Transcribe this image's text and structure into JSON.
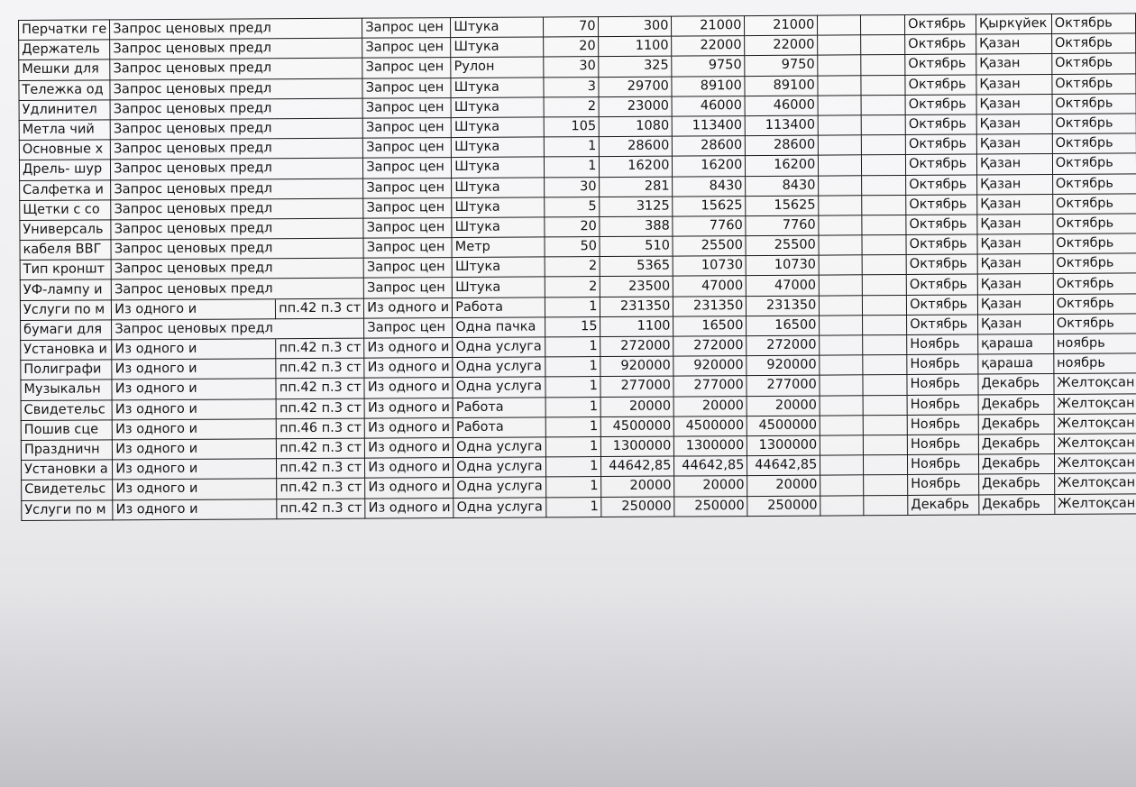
{
  "table": {
    "rows": [
      [
        "Перчатки ге",
        "Запрос ценовых предл",
        "",
        "Запрос цен",
        "Штука",
        "70",
        "300",
        "21000",
        "21000",
        "",
        "",
        "Октябрь",
        "Қыркүйек",
        "Октябрь"
      ],
      [
        "Держатель",
        "Запрос ценовых предл",
        "",
        "Запрос цен",
        "Штука",
        "20",
        "1100",
        "22000",
        "22000",
        "",
        "",
        "Октябрь",
        "Қазан",
        "Октябрь"
      ],
      [
        "Мешки для",
        "Запрос ценовых предл",
        "",
        "Запрос цен",
        "Рулон",
        "30",
        "325",
        "9750",
        "9750",
        "",
        "",
        "Октябрь",
        "Қазан",
        "Октябрь"
      ],
      [
        "Тележка од",
        "Запрос ценовых предл",
        "",
        "Запрос цен",
        "Штука",
        "3",
        "29700",
        "89100",
        "89100",
        "",
        "",
        "Октябрь",
        "Қазан",
        "Октябрь"
      ],
      [
        "Удлинител",
        "Запрос ценовых предл",
        "",
        "Запрос цен",
        "Штука",
        "2",
        "23000",
        "46000",
        "46000",
        "",
        "",
        "Октябрь",
        "Қазан",
        "Октябрь"
      ],
      [
        "Метла чий",
        "Запрос ценовых предл",
        "",
        "Запрос цен",
        "Штука",
        "105",
        "1080",
        "113400",
        "113400",
        "",
        "",
        "Октябрь",
        "Қазан",
        "Октябрь"
      ],
      [
        "Основные х",
        "Запрос ценовых предл",
        "",
        "Запрос цен",
        "Штука",
        "1",
        "28600",
        "28600",
        "28600",
        "",
        "",
        "Октябрь",
        "Қазан",
        "Октябрь"
      ],
      [
        "Дрель- шур",
        "Запрос ценовых предл",
        "",
        "Запрос цен",
        "Штука",
        "1",
        "16200",
        "16200",
        "16200",
        "",
        "",
        "Октябрь",
        "Қазан",
        "Октябрь"
      ],
      [
        "Салфетка и",
        "Запрос ценовых предл",
        "",
        "Запрос цен",
        "Штука",
        "30",
        "281",
        "8430",
        "8430",
        "",
        "",
        "Октябрь",
        "Қазан",
        "Октябрь"
      ],
      [
        "Щетки с со",
        "Запрос ценовых предл",
        "",
        "Запрос цен",
        "Штука",
        "5",
        "3125",
        "15625",
        "15625",
        "",
        "",
        "Октябрь",
        "Қазан",
        "Октябрь"
      ],
      [
        "Универсаль",
        "Запрос ценовых предл",
        "",
        "Запрос цен",
        "Штука",
        "20",
        "388",
        "7760",
        "7760",
        "",
        "",
        "Октябрь",
        "Қазан",
        "Октябрь"
      ],
      [
        "кабеля ВВГ",
        "Запрос ценовых предл",
        "",
        "Запрос цен",
        "Метр",
        "50",
        "510",
        "25500",
        "25500",
        "",
        "",
        "Октябрь",
        "Қазан",
        "Октябрь"
      ],
      [
        "Тип кроншт",
        "Запрос ценовых предл",
        "",
        "Запрос цен",
        "Штука",
        "2",
        "5365",
        "10730",
        "10730",
        "",
        "",
        "Октябрь",
        "Қазан",
        "Октябрь"
      ],
      [
        "УФ-лампу и",
        "Запрос ценовых предл",
        "",
        "Запрос цен",
        "Штука",
        "2",
        "23500",
        "47000",
        "47000",
        "",
        "",
        "Октябрь",
        "Қазан",
        "Октябрь"
      ],
      [
        "Услуги по м",
        "Из одного и",
        "пп.42 п.3 ст",
        "Из одного и",
        "Работа",
        "1",
        "231350",
        "231350",
        "231350",
        "",
        "",
        "Октябрь",
        "Қазан",
        "Октябрь"
      ],
      [
        "бумаги для",
        "Запрос ценовых предл",
        "",
        "Запрос цен",
        "Одна пачка",
        "15",
        "1100",
        "16500",
        "16500",
        "",
        "",
        "Октябрь",
        "Қазан",
        "Октябрь"
      ],
      [
        "Установка и",
        "Из одного и",
        "пп.42 п.3 ст",
        "Из одного и",
        "Одна услуга",
        "1",
        "272000",
        "272000",
        "272000",
        "",
        "",
        "Ноябрь",
        "қараша",
        "ноябрь"
      ],
      [
        "Полиграфи",
        "Из одного и",
        "пп.42 п.3 ст",
        "Из одного и",
        "Одна услуга",
        "1",
        "920000",
        "920000",
        "920000",
        "",
        "",
        "Ноябрь",
        "қараша",
        "ноябрь"
      ],
      [
        "Музыкальн",
        "Из одного и",
        "пп.42 п.3 ст",
        "Из одного и",
        "Одна услуга",
        "1",
        "277000",
        "277000",
        "277000",
        "",
        "",
        "Ноябрь",
        "Декабрь",
        "Желтоқсан"
      ],
      [
        "Свидетельс",
        "Из одного и",
        "пп.42 п.3 ст",
        "Из одного и",
        "Работа",
        "1",
        "20000",
        "20000",
        "20000",
        "",
        "",
        "Ноябрь",
        "Декабрь",
        "Желтоқсан"
      ],
      [
        "Пошив сце",
        "Из одного и",
        "пп.46 п.3 ст",
        "Из одного и",
        "Работа",
        "1",
        "4500000",
        "4500000",
        "4500000",
        "",
        "",
        "Ноябрь",
        "Декабрь",
        "Желтоқсан"
      ],
      [
        "Праздничн",
        "Из одного и",
        "пп.42 п.3 ст",
        "Из одного и",
        "Одна услуга",
        "1",
        "1300000",
        "1300000",
        "1300000",
        "",
        "",
        "Ноябрь",
        "Декабрь",
        "Желтоқсан"
      ],
      [
        "Установки а",
        "Из одного и",
        "пп.42 п.3 ст",
        "Из одного и",
        "Одна услуга",
        "1",
        "44642,85",
        "44642,85",
        "44642,85",
        "",
        "",
        "Ноябрь",
        "Декабрь",
        "Желтоқсан"
      ],
      [
        "Свидетельс",
        "Из одного и",
        "пп.42 п.3 ст",
        "Из одного и",
        "Одна услуга",
        "1",
        "20000",
        "20000",
        "20000",
        "",
        "",
        "Ноябрь",
        "Декабрь",
        "Желтоқсан"
      ],
      [
        "Услуги по м",
        "Из одного и",
        "пп.42 п.3 ст",
        "Из одного и",
        "Одна услуга",
        "1",
        "250000",
        "250000",
        "250000",
        "",
        "",
        "Декабрь",
        "Декабрь",
        "Желтоқсан"
      ]
    ]
  }
}
